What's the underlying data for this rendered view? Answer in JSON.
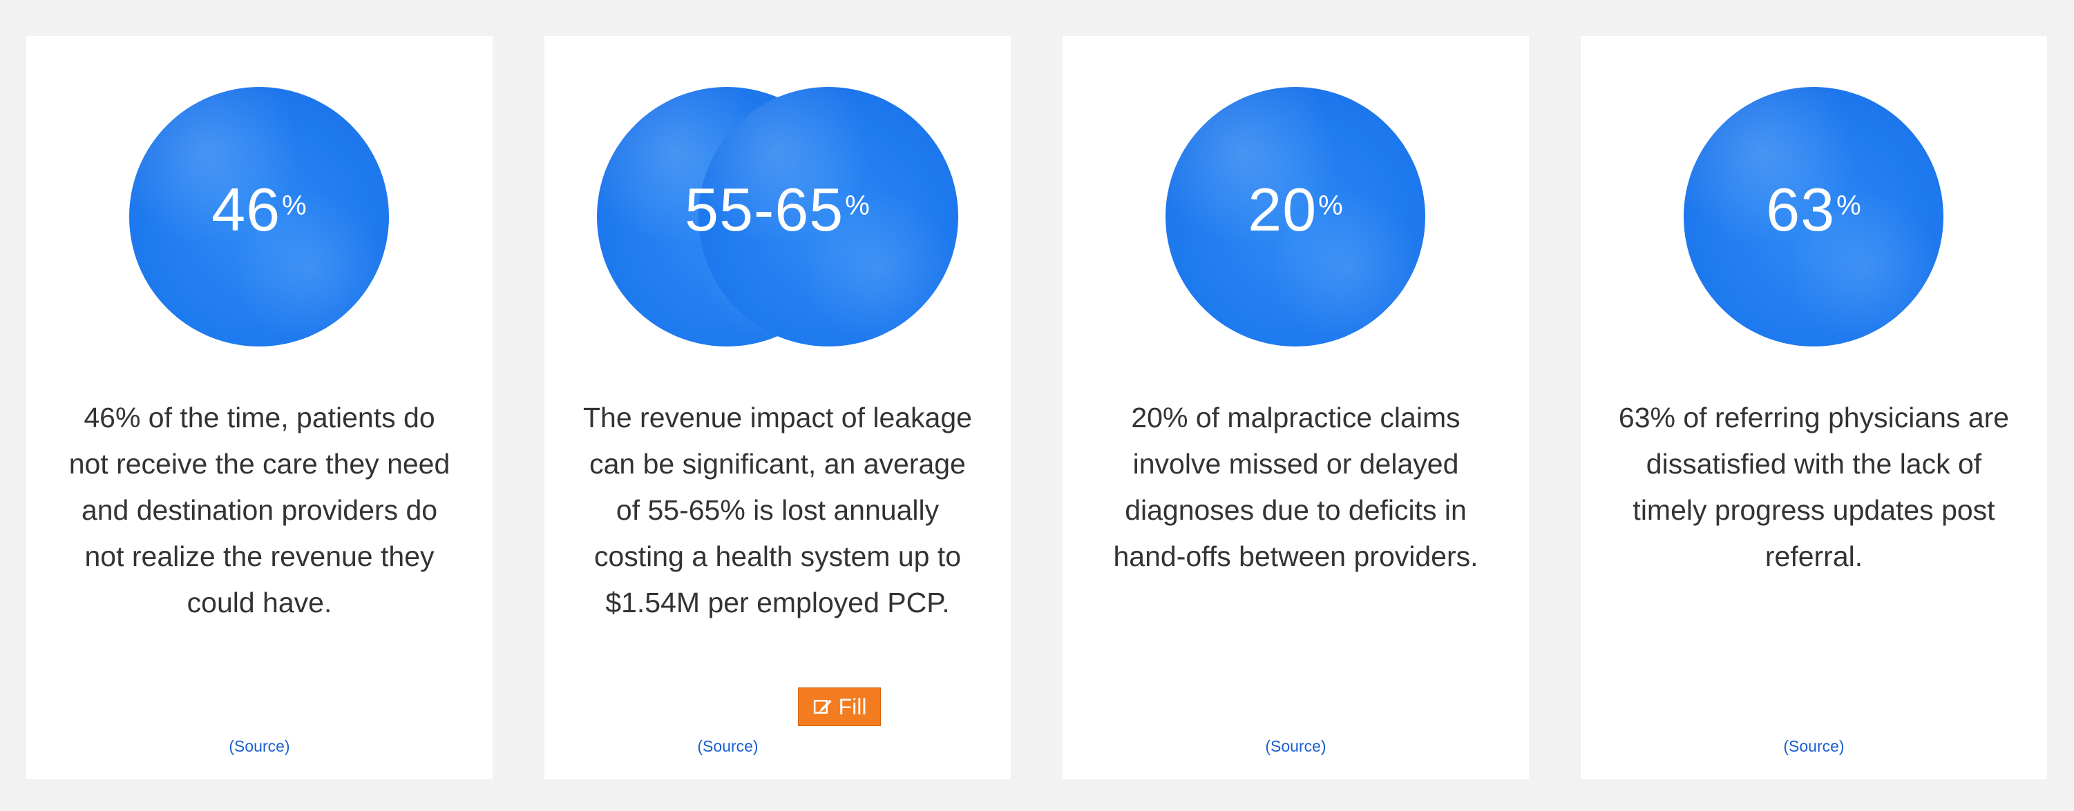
{
  "cards": [
    {
      "stat_value": "46",
      "stat_unit": "%",
      "description": "46% of the time, patients do not receive the care they need and destination providers do not realize the revenue they could have.",
      "source_label": "(Source)"
    },
    {
      "stat_value": "55-65",
      "stat_unit": "%",
      "description": "The revenue impact of leakage can be significant, an average of 55-65% is lost annually costing a health system up to $1.54M per employed PCP.",
      "source_label": "(Source)"
    },
    {
      "stat_value": "20",
      "stat_unit": "%",
      "description": "20% of malpractice claims involve missed or delayed diagnoses due to deficits in hand-offs between providers.",
      "source_label": "(Source)"
    },
    {
      "stat_value": "63",
      "stat_unit": "%",
      "description": "63% of referring physicians are dissatisfied with the lack of timely progress updates post referral.",
      "source_label": "(Source)"
    }
  ],
  "fill_button": {
    "label": "Fill",
    "icon": "pen-edit-icon",
    "color": "#f47c20"
  },
  "colors": {
    "background": "#f2f2f2",
    "card": "#ffffff",
    "circle": "#1f7bf0",
    "text": "#333333",
    "link": "#1a5fd1"
  }
}
